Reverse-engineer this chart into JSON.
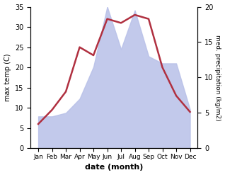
{
  "months": [
    "Jan",
    "Feb",
    "Mar",
    "Apr",
    "May",
    "Jun",
    "Jul",
    "Aug",
    "Sep",
    "Oct",
    "Nov",
    "Dec"
  ],
  "temperature": [
    6.0,
    9.5,
    14.0,
    25.0,
    23.0,
    32.0,
    31.0,
    33.0,
    32.0,
    20.0,
    13.0,
    9.0
  ],
  "precipitation": [
    4.5,
    4.5,
    5.0,
    7.0,
    11.5,
    20.0,
    14.0,
    19.5,
    13.0,
    12.0,
    12.0,
    5.5
  ],
  "temp_color": "#b03040",
  "precip_fill_color": "#b8c0e8",
  "precip_alpha": 0.85,
  "left_label": "max temp (C)",
  "right_label": "med. precipitation (kg/m2)",
  "xlabel": "date (month)",
  "ylim_left": [
    0,
    35
  ],
  "ylim_right": [
    0,
    20
  ],
  "yticks_left": [
    0,
    5,
    10,
    15,
    20,
    25,
    30,
    35
  ],
  "yticks_right": [
    0,
    5,
    10,
    15,
    20
  ],
  "background_color": "#ffffff",
  "temp_linewidth": 1.8
}
